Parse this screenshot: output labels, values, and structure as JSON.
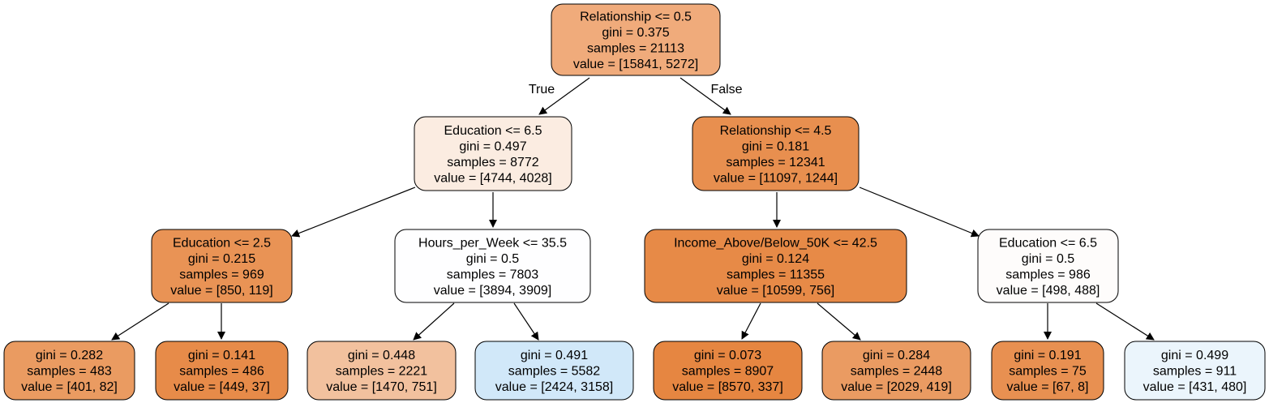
{
  "diagram": {
    "type": "decision-tree",
    "nodes": [
      {
        "id": "n0",
        "lines": [
          "Relationship <= 0.5",
          "gini = 0.375",
          "samples = 21113",
          "value = [15841, 5272]"
        ],
        "fill": "#f0ab7b"
      },
      {
        "id": "n1",
        "lines": [
          "Education <= 6.5",
          "gini = 0.497",
          "samples = 8772",
          "value = [4744, 4028]"
        ],
        "fill": "#fbece1"
      },
      {
        "id": "n2",
        "lines": [
          "Relationship <= 4.5",
          "gini = 0.181",
          "samples = 12341",
          "value = [11097, 1244]"
        ],
        "fill": "#e88f4f"
      },
      {
        "id": "n3",
        "lines": [
          "Education <= 2.5",
          "gini = 0.215",
          "samples = 969",
          "value = [850, 119]"
        ],
        "fill": "#e99355"
      },
      {
        "id": "n4",
        "lines": [
          "Hours_per_Week <= 35.5",
          "gini = 0.5",
          "samples = 7803",
          "value = [3894, 3909]"
        ],
        "fill": "#fefeff"
      },
      {
        "id": "n5",
        "lines": [
          "Income_Above/Below_50K <= 42.5",
          "gini = 0.124",
          "samples = 11355",
          "value = [10599, 756]"
        ],
        "fill": "#e78a47"
      },
      {
        "id": "n6",
        "lines": [
          "Education <= 6.5",
          "gini = 0.5",
          "samples = 986",
          "value = [498, 488]"
        ],
        "fill": "#fefcfb"
      },
      {
        "id": "n7",
        "lines": [
          "gini = 0.282",
          "samples = 483",
          "value = [401, 82]"
        ],
        "fill": "#ea9b61"
      },
      {
        "id": "n8",
        "lines": [
          "gini = 0.141",
          "samples = 486",
          "value = [449, 37]"
        ],
        "fill": "#e78b49"
      },
      {
        "id": "n9",
        "lines": [
          "gini = 0.448",
          "samples = 2221",
          "value = [1470, 751]"
        ],
        "fill": "#f2c19e"
      },
      {
        "id": "n10",
        "lines": [
          "gini = 0.491",
          "samples = 5582",
          "value = [2424, 3158]"
        ],
        "fill": "#d1e8f9"
      },
      {
        "id": "n11",
        "lines": [
          "gini = 0.073",
          "samples = 8907",
          "value = [8570, 337]"
        ],
        "fill": "#e68641"
      },
      {
        "id": "n12",
        "lines": [
          "gini = 0.284",
          "samples = 2448",
          "value = [2029, 419]"
        ],
        "fill": "#ea9b62"
      },
      {
        "id": "n13",
        "lines": [
          "gini = 0.191",
          "samples = 75",
          "value = [67, 8]"
        ],
        "fill": "#e89051"
      },
      {
        "id": "n14",
        "lines": [
          "gini = 0.499",
          "samples = 911",
          "value = [431, 480]"
        ],
        "fill": "#ebf5fc"
      }
    ],
    "edges": [
      {
        "from": "n0",
        "to": "n1",
        "label": "True"
      },
      {
        "from": "n0",
        "to": "n2",
        "label": "False"
      },
      {
        "from": "n1",
        "to": "n3",
        "label": ""
      },
      {
        "from": "n1",
        "to": "n4",
        "label": ""
      },
      {
        "from": "n2",
        "to": "n5",
        "label": ""
      },
      {
        "from": "n2",
        "to": "n6",
        "label": ""
      },
      {
        "from": "n3",
        "to": "n7",
        "label": ""
      },
      {
        "from": "n3",
        "to": "n8",
        "label": ""
      },
      {
        "from": "n4",
        "to": "n9",
        "label": ""
      },
      {
        "from": "n4",
        "to": "n10",
        "label": ""
      },
      {
        "from": "n5",
        "to": "n11",
        "label": ""
      },
      {
        "from": "n5",
        "to": "n12",
        "label": ""
      },
      {
        "from": "n6",
        "to": "n13",
        "label": ""
      },
      {
        "from": "n6",
        "to": "n14",
        "label": ""
      }
    ],
    "stroke_color": "#000000"
  }
}
